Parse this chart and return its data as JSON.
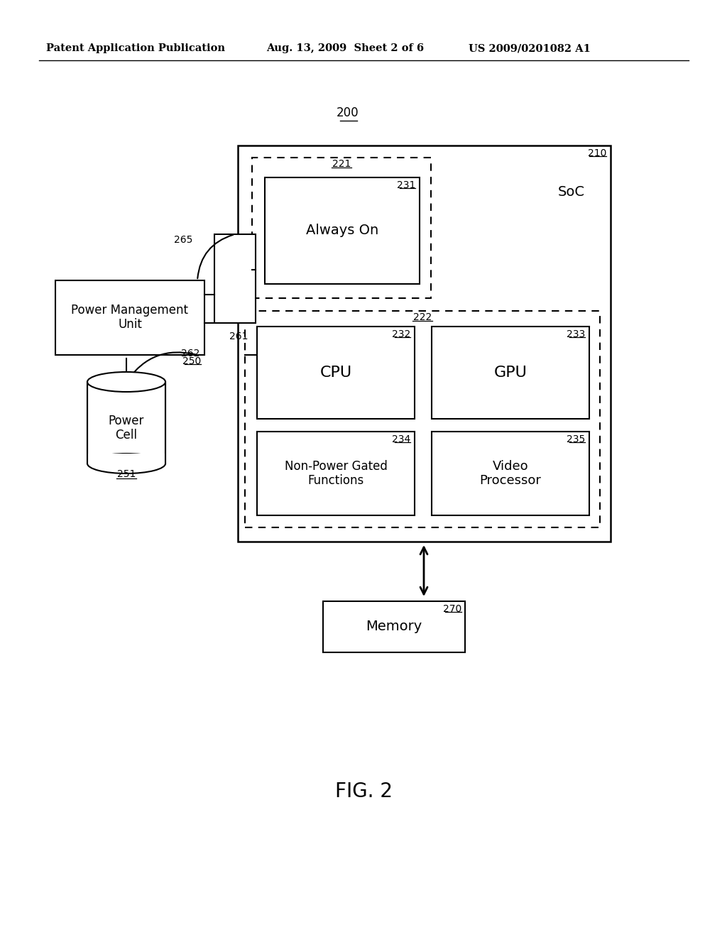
{
  "bg_color": "#ffffff",
  "header_left": "Patent Application Publication",
  "header_mid": "Aug. 13, 2009  Sheet 2 of 6",
  "header_right": "US 2009/0201082 A1",
  "fig_label": "FIG. 2",
  "label_200": "200",
  "label_210": "210",
  "label_221": "221",
  "label_222": "222",
  "label_231": "231",
  "label_232": "232",
  "label_233": "233",
  "label_234": "234",
  "label_235": "235",
  "label_250": "250",
  "label_251": "251",
  "label_261": "261",
  "label_262": "262",
  "label_265": "265",
  "label_270": "270",
  "text_soc": "SoC",
  "text_always_on": "Always On",
  "text_cpu": "CPU",
  "text_gpu": "GPU",
  "text_non_power": "Non-Power Gated\nFunctions",
  "text_video": "Video\nProcessor",
  "text_pmu": "Power Management\nUnit",
  "text_power_cell": "Power\nCell",
  "text_memory": "Memory"
}
